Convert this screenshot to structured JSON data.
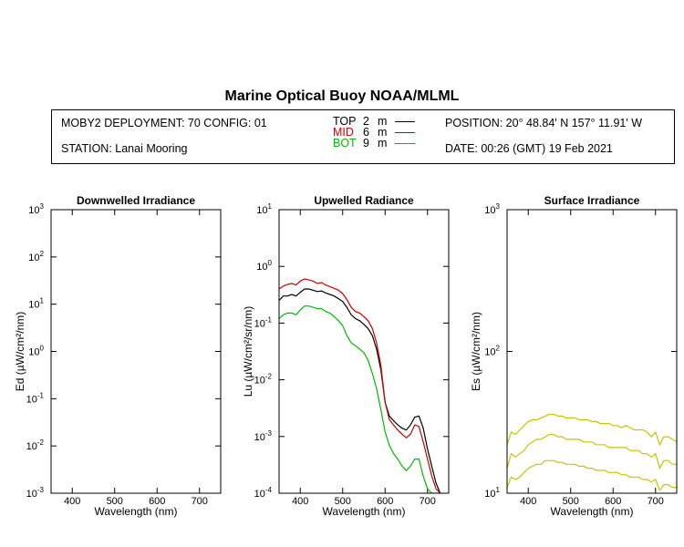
{
  "header": {
    "title": "Marine Optical Buoy NOAA/MLML",
    "deployment": "MOBY2 DEPLOYMENT: 70 CONFIG: 01",
    "station": "STATION: Lanai Mooring",
    "position": "POSITION: 20° 48.84' N   157° 11.91' W",
    "date": "DATE: 00:26 (GMT) 19 Feb 2021",
    "legend": [
      {
        "name": "TOP",
        "depth": "2",
        "unit": "m",
        "color": "#000000"
      },
      {
        "name": "MID",
        "depth": "6",
        "unit": "m",
        "color": "#cc0000"
      },
      {
        "name": "BOT",
        "depth": "9",
        "unit": "m",
        "color": "#00bb00"
      }
    ]
  },
  "colors": {
    "top": "#000000",
    "mid": "#cc0000",
    "bot": "#00bb00",
    "surface": "#c8c400"
  },
  "chart_data": [
    {
      "type": "line",
      "title": "Downwelled Irradiance",
      "xlabel": "Wavelength (nm)",
      "ylabel": "Ed  (µW/cm²/nm)",
      "xlim": [
        350,
        750
      ],
      "ylim": [
        0.001,
        1000
      ],
      "yscale": "log",
      "xticks": [
        "400",
        "500",
        "600",
        "700"
      ],
      "yticks": [
        "10",
        "10",
        "10",
        "10",
        "10",
        "10",
        "10"
      ],
      "ytick_exponents": [
        "-3",
        "-2",
        "-1",
        "0",
        "1",
        "2",
        "3"
      ],
      "series": []
    },
    {
      "type": "line",
      "title": "Upwelled Radiance",
      "xlabel": "Wavelength (nm)",
      "ylabel": "Lu  (µW/cm²/sr/nm)",
      "xlim": [
        350,
        750
      ],
      "ylim": [
        0.0001,
        10
      ],
      "yscale": "log",
      "xticks": [
        "400",
        "500",
        "600",
        "700"
      ],
      "yticks": [
        "10",
        "10",
        "10",
        "10",
        "10",
        "10"
      ],
      "ytick_exponents": [
        "-4",
        "-3",
        "-2",
        "-1",
        "0",
        "1"
      ],
      "series": [
        {
          "name": "TOP",
          "x": [
            350,
            360,
            370,
            380,
            390,
            400,
            410,
            420,
            430,
            440,
            450,
            460,
            470,
            480,
            490,
            500,
            510,
            520,
            530,
            540,
            550,
            560,
            570,
            580,
            590,
            600,
            610,
            620,
            630,
            640,
            650,
            660,
            670,
            680,
            690,
            700,
            710,
            720,
            730
          ],
          "y": [
            0.25,
            0.3,
            0.3,
            0.32,
            0.3,
            0.35,
            0.4,
            0.4,
            0.38,
            0.36,
            0.37,
            0.34,
            0.32,
            0.3,
            0.27,
            0.24,
            0.19,
            0.14,
            0.12,
            0.11,
            0.095,
            0.08,
            0.06,
            0.035,
            0.015,
            0.004,
            0.0023,
            0.0019,
            0.0016,
            0.0014,
            0.0013,
            0.0016,
            0.0022,
            0.0023,
            0.0014,
            0.0006,
            0.0003,
            0.00015,
            0.0001
          ]
        },
        {
          "name": "MID",
          "x": [
            350,
            360,
            370,
            380,
            390,
            400,
            410,
            420,
            430,
            440,
            450,
            460,
            470,
            480,
            490,
            500,
            510,
            520,
            530,
            540,
            550,
            560,
            570,
            580,
            590,
            600,
            610,
            620,
            630,
            640,
            650,
            660,
            670,
            680,
            690,
            700,
            710,
            720,
            730
          ],
          "y": [
            0.4,
            0.45,
            0.48,
            0.5,
            0.47,
            0.55,
            0.6,
            0.58,
            0.55,
            0.5,
            0.52,
            0.47,
            0.44,
            0.41,
            0.38,
            0.33,
            0.26,
            0.19,
            0.16,
            0.15,
            0.13,
            0.11,
            0.08,
            0.045,
            0.018,
            0.004,
            0.002,
            0.0016,
            0.0013,
            0.0011,
            0.00095,
            0.0011,
            0.0016,
            0.0015,
            0.0008,
            0.0004,
            0.0002,
            0.00012,
            0.0001
          ]
        },
        {
          "name": "BOT",
          "x": [
            350,
            360,
            370,
            380,
            390,
            400,
            410,
            420,
            430,
            440,
            450,
            460,
            470,
            480,
            490,
            500,
            510,
            520,
            530,
            540,
            550,
            560,
            570,
            580,
            590,
            600,
            610,
            620,
            630,
            640,
            650,
            660,
            670,
            680,
            690,
            700,
            710,
            720,
            730
          ],
          "y": [
            0.12,
            0.14,
            0.15,
            0.15,
            0.14,
            0.17,
            0.2,
            0.2,
            0.19,
            0.18,
            0.18,
            0.16,
            0.15,
            0.13,
            0.11,
            0.09,
            0.06,
            0.045,
            0.04,
            0.035,
            0.03,
            0.022,
            0.013,
            0.007,
            0.003,
            0.0012,
            0.0007,
            0.0005,
            0.0004,
            0.0003,
            0.00025,
            0.0003,
            0.0004,
            0.0004,
            0.0002,
            0.00012,
            0.0001,
            0.0001,
            0.0001
          ]
        }
      ]
    },
    {
      "type": "line",
      "title": "Surface Irradiance",
      "xlabel": "Wavelength (nm)",
      "ylabel": "Es  (µW/cm²/nm)",
      "xlim": [
        350,
        750
      ],
      "ylim": [
        10,
        1000
      ],
      "yscale": "log",
      "xticks": [
        "400",
        "500",
        "600",
        "700"
      ],
      "yticks": [
        "10",
        "10",
        "10"
      ],
      "ytick_exponents": [
        "1",
        "2",
        "3"
      ],
      "series": [
        {
          "name": "",
          "x": [
            350,
            360,
            370,
            380,
            390,
            400,
            410,
            420,
            430,
            440,
            450,
            460,
            470,
            480,
            490,
            500,
            510,
            520,
            530,
            540,
            550,
            560,
            570,
            580,
            590,
            600,
            610,
            620,
            630,
            640,
            650,
            660,
            670,
            680,
            690,
            700,
            710,
            720,
            730,
            740,
            750
          ],
          "y": [
            22,
            27,
            26,
            28,
            30,
            32,
            33,
            33,
            34,
            35,
            36,
            36,
            35,
            35,
            34,
            34,
            34,
            33,
            33,
            33,
            32,
            32,
            31,
            31,
            31,
            30,
            30,
            29,
            30,
            29,
            28,
            28,
            28,
            27,
            25,
            27,
            22,
            25,
            25,
            24,
            23
          ]
        },
        {
          "name": "",
          "x": [
            350,
            360,
            370,
            380,
            390,
            400,
            410,
            420,
            430,
            440,
            450,
            460,
            470,
            480,
            490,
            500,
            510,
            520,
            530,
            540,
            550,
            560,
            570,
            580,
            590,
            600,
            610,
            620,
            630,
            640,
            650,
            660,
            670,
            680,
            690,
            700,
            710,
            720,
            730,
            740,
            750
          ],
          "y": [
            15,
            19,
            18,
            19,
            20,
            22,
            23,
            24,
            24,
            25,
            26,
            26,
            25,
            25,
            24,
            24,
            24,
            24,
            23,
            23,
            23,
            22,
            22,
            22,
            21,
            21,
            21,
            21,
            21,
            20,
            20,
            20,
            19,
            19,
            18,
            19,
            15,
            17,
            17,
            16,
            16
          ]
        },
        {
          "name": "",
          "x": [
            350,
            360,
            370,
            380,
            390,
            400,
            410,
            420,
            430,
            440,
            450,
            460,
            470,
            480,
            490,
            500,
            510,
            520,
            530,
            540,
            550,
            560,
            570,
            580,
            590,
            600,
            610,
            620,
            630,
            640,
            650,
            660,
            670,
            680,
            690,
            700,
            710,
            720,
            730,
            740,
            750
          ],
          "y": [
            11,
            13,
            12.5,
            13,
            14,
            15,
            15.5,
            16,
            16,
            17,
            17,
            17,
            16.5,
            16.5,
            16,
            16,
            16,
            15.5,
            15.5,
            15,
            15,
            14.5,
            14.5,
            14.5,
            14,
            14,
            14,
            13.5,
            13.5,
            13,
            13,
            13,
            12.5,
            12.5,
            12,
            12.5,
            10.5,
            11.5,
            11.5,
            11,
            11
          ]
        }
      ]
    }
  ]
}
